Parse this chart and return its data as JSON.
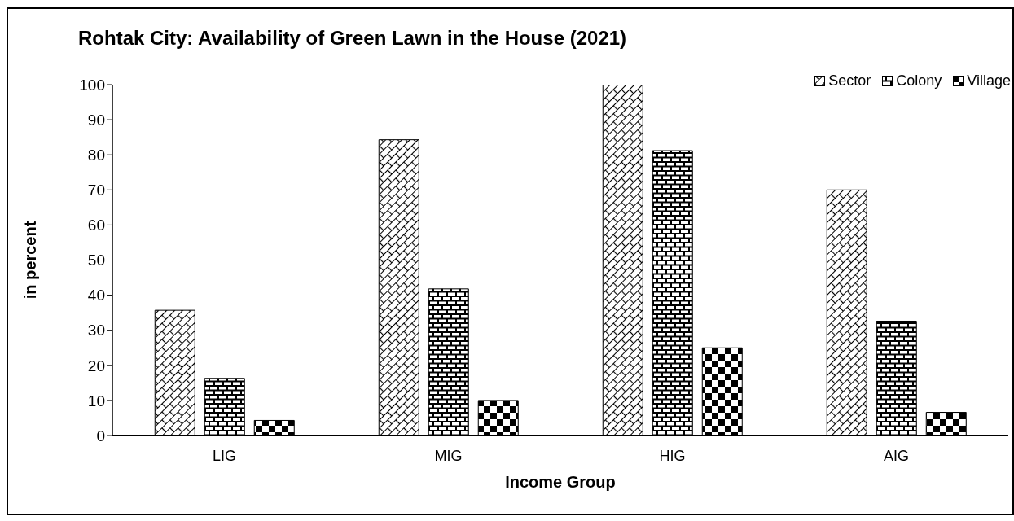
{
  "chart_data": {
    "type": "bar",
    "title": "Rohtak City: Availability of Green Lawn in the House (2021)",
    "xlabel": "Income Group",
    "ylabel": "in percent",
    "categories": [
      "LIG",
      "MIG",
      "HIG",
      "AIG"
    ],
    "series": [
      {
        "name": "Sector",
        "color": "#000000",
        "values": [
          35.7,
          84.3,
          100,
          70
        ]
      },
      {
        "name": "Colony",
        "color": "#000000",
        "values": [
          16.3,
          41.8,
          81.2,
          32.6
        ]
      },
      {
        "name": "Village",
        "color": "#000000",
        "values": [
          4.3,
          10,
          25,
          6.6
        ]
      }
    ],
    "ylim": [
      0,
      100
    ],
    "yticks": [
      0,
      10,
      20,
      30,
      40,
      50,
      60,
      70,
      80,
      90,
      100
    ],
    "grid": false,
    "legend": "top right"
  }
}
